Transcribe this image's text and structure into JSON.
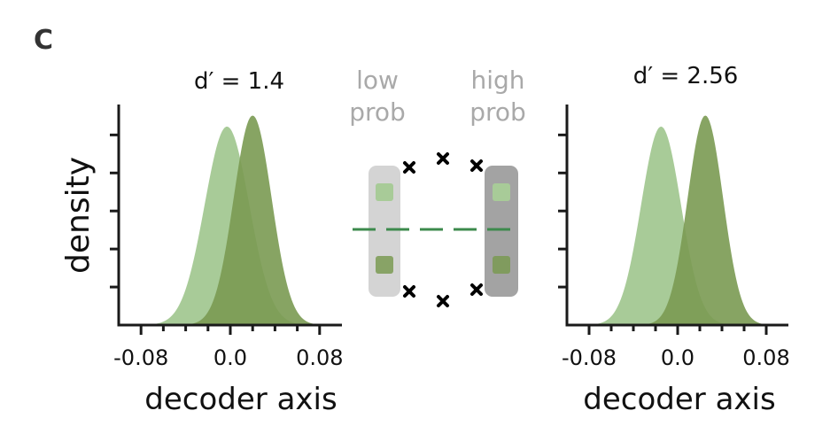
{
  "panel_label": "C",
  "colors": {
    "low": "#a8cb98",
    "high": "#7a9a52",
    "overlap": "#6e9e4a",
    "axis": "#1a1a1a",
    "inset_text": "#a9a9a9",
    "box_low": "#d4d4d4",
    "box_high": "#a3a3a3",
    "dash": "#3c8a4c"
  },
  "inset": {
    "low_label_line1": "low",
    "low_label_line2": "prob",
    "high_label_line1": "high",
    "high_label_line2": "prob"
  },
  "chart_data": [
    {
      "type": "area",
      "title": "d′ = 1.4",
      "xlabel": "decoder axis",
      "ylabel": "density",
      "xlim": [
        -0.1,
        0.1
      ],
      "xticks": [
        -0.08,
        0.0,
        0.08
      ],
      "xtick_labels": [
        "-0.08",
        "0.0",
        "0.08"
      ],
      "grid": false,
      "series": [
        {
          "mean": -0.003,
          "sd": 0.02,
          "peak": 0.9
        },
        {
          "mean": 0.02,
          "sd": 0.017,
          "peak": 0.95
        }
      ]
    },
    {
      "type": "area",
      "title": "d′ = 2.56",
      "xlabel": "decoder axis",
      "ylabel": "",
      "xlim": [
        -0.1,
        0.1
      ],
      "xticks": [
        -0.08,
        0.0,
        0.08
      ],
      "xtick_labels": [
        "-0.08",
        "0.0",
        "0.08"
      ],
      "grid": false,
      "series": [
        {
          "mean": -0.015,
          "sd": 0.018,
          "peak": 0.9
        },
        {
          "mean": 0.025,
          "sd": 0.016,
          "peak": 0.95
        }
      ]
    }
  ]
}
